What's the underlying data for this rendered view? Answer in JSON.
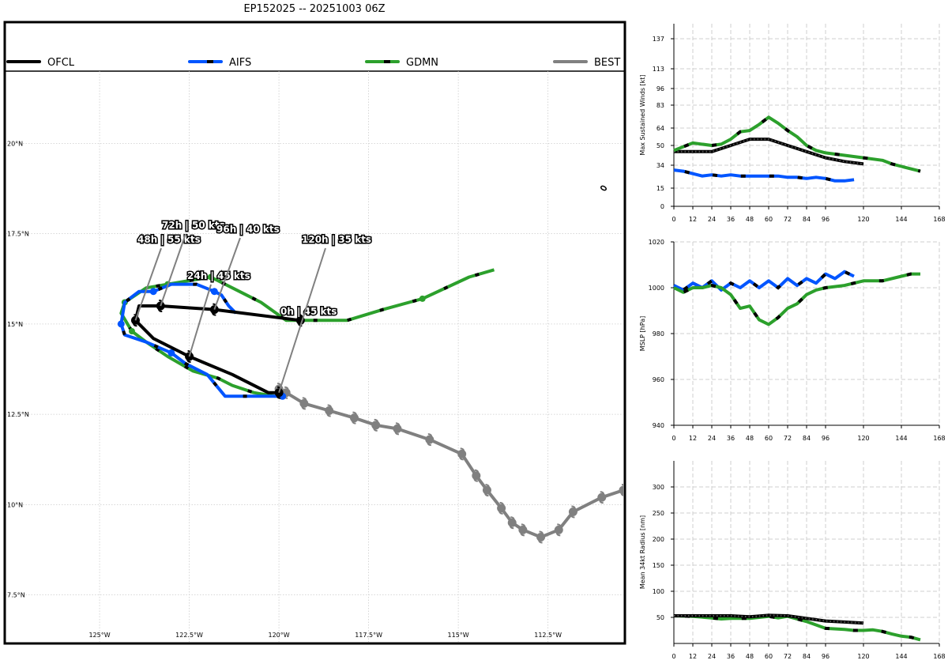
{
  "title": "EP152025 -- 20251003 06Z",
  "chart_data": [
    {
      "type": "line",
      "title": "EP152025 -- 20251003 06Z",
      "subtype": "track-map",
      "xlabel": "",
      "ylabel": "",
      "lon_range": [
        -127.6,
        -110.4
      ],
      "lat_range": [
        6.2,
        22.0
      ],
      "x_ticks": [
        {
          "lon": -125.0,
          "label": "125°W"
        },
        {
          "lon": -122.5,
          "label": "122.5°W"
        },
        {
          "lon": -120.0,
          "label": "120°W"
        },
        {
          "lon": -117.5,
          "label": "117.5°W"
        },
        {
          "lon": -115.0,
          "label": "115°W"
        },
        {
          "lon": -112.5,
          "label": "112.5°W"
        }
      ],
      "y_ticks": [
        {
          "lat": 7.5,
          "label": "7.5°N"
        },
        {
          "lat": 10.0,
          "label": "10°N"
        },
        {
          "lat": 12.5,
          "label": "12.5°N"
        },
        {
          "lat": 15.0,
          "label": "15°N"
        },
        {
          "lat": 17.5,
          "label": "17.5°N"
        },
        {
          "lat": 20.0,
          "label": "20°N"
        }
      ],
      "legend": [
        "OFCL",
        "AIFS",
        "GDMN",
        "BEST"
      ],
      "series": [
        {
          "name": "BEST",
          "color": "#808080",
          "lon": [
            -110.4,
            -111.0,
            -111.8,
            -112.2,
            -112.7,
            -113.2,
            -113.5,
            -113.8,
            -114.2,
            -114.5,
            -114.9,
            -115.8,
            -116.7,
            -117.3,
            -117.9,
            -118.6,
            -119.3,
            -119.8,
            -120.0
          ],
          "lat": [
            10.4,
            10.2,
            9.8,
            9.3,
            9.1,
            9.3,
            9.5,
            9.9,
            10.4,
            10.8,
            11.4,
            11.8,
            12.1,
            12.2,
            12.4,
            12.6,
            12.8,
            13.1,
            13.2
          ]
        },
        {
          "name": "OFCL",
          "color": "#000000",
          "points": [
            {
              "lon": -119.4,
              "lat": 15.1,
              "tau": "0h",
              "wind": 45
            },
            {
              "lon": -122.5,
              "lat": 14.1,
              "tau": "24h",
              "wind": 45
            },
            {
              "lon": -124.0,
              "lat": 15.1,
              "tau": "48h",
              "wind": 55
            },
            {
              "lon": -123.3,
              "lat": 15.5,
              "tau": "72h",
              "wind": 50
            },
            {
              "lon": -121.8,
              "lat": 15.4,
              "tau": "96h",
              "wind": 40
            },
            {
              "lon": -120.0,
              "lat": 13.1,
              "tau": "120h",
              "wind": 35
            }
          ],
          "lon": [
            -119.4,
            -121.8,
            -123.3,
            -123.9,
            -124.0,
            -123.5,
            -122.5,
            -121.3,
            -120.3,
            -120.0
          ],
          "lat": [
            15.1,
            15.4,
            15.5,
            15.5,
            15.1,
            14.6,
            14.1,
            13.6,
            13.1,
            13.1
          ]
        },
        {
          "name": "AIFS",
          "color": "#0055ff",
          "lon": [
            -119.9,
            -120.4,
            -121.5,
            -122.0,
            -122.6,
            -123.0,
            -123.7,
            -124.3,
            -124.4,
            -124.3,
            -123.9,
            -123.5,
            -123.0,
            -122.3,
            -121.8,
            -121.6,
            -121.4,
            -121.2
          ],
          "lat": [
            13.0,
            13.0,
            13.0,
            13.6,
            13.9,
            14.2,
            14.5,
            14.7,
            15.0,
            15.6,
            15.9,
            15.9,
            16.1,
            16.1,
            15.9,
            15.8,
            15.5,
            15.3
          ]
        },
        {
          "name": "GDMN",
          "color": "#2ca02c",
          "lon": [
            -114.0,
            -114.7,
            -116.0,
            -117.1,
            -118.1,
            -118.6,
            -119.4,
            -119.8,
            -120.5,
            -120.9,
            -121.3,
            -121.9,
            -122.5,
            -123.1,
            -123.7,
            -124.3,
            -124.4,
            -124.1,
            -123.7,
            -123.1,
            -122.4,
            -121.7,
            -121.3,
            -120.7,
            -120.1
          ],
          "lat": [
            16.5,
            16.3,
            15.7,
            15.4,
            15.1,
            15.1,
            15.1,
            15.1,
            15.6,
            15.8,
            16.0,
            16.3,
            16.2,
            16.1,
            16.0,
            15.6,
            15.3,
            14.8,
            14.5,
            14.1,
            13.7,
            13.5,
            13.3,
            13.1,
            13.0
          ]
        }
      ],
      "annotations": [
        "0h | 45 kts",
        "24h | 45 kts",
        "48h | 55 kts",
        "72h | 50 kts",
        "96h | 40 kts",
        "120h | 35 kts"
      ]
    },
    {
      "type": "line",
      "title": "",
      "xlabel": "",
      "ylabel": "Max Sustained Winds [kt]",
      "xlim": [
        0,
        168
      ],
      "ylim": [
        0,
        150
      ],
      "x_ticks": [
        0,
        12,
        24,
        36,
        48,
        60,
        72,
        84,
        96,
        120,
        144,
        168
      ],
      "y_ticks": [
        0,
        15,
        34,
        50,
        64,
        83,
        96,
        113,
        137
      ],
      "series": [
        {
          "name": "OFCL",
          "color": "#000000",
          "x": [
            0,
            12,
            24,
            36,
            48,
            60,
            72,
            84,
            96,
            108,
            120
          ],
          "y": [
            45,
            45,
            45,
            50,
            55,
            55,
            50,
            45,
            40,
            37,
            35
          ]
        },
        {
          "name": "AIFS",
          "color": "#0055ff",
          "x": [
            0,
            6,
            12,
            18,
            24,
            30,
            36,
            42,
            48,
            54,
            60,
            66,
            72,
            78,
            84,
            90,
            96,
            102,
            108,
            114
          ],
          "y": [
            30,
            29,
            27,
            25,
            26,
            25,
            26,
            25,
            25,
            25,
            25,
            25,
            24,
            24,
            23,
            24,
            23,
            21,
            21,
            22
          ]
        },
        {
          "name": "GDMN",
          "color": "#2ca02c",
          "x": [
            0,
            12,
            24,
            30,
            36,
            42,
            48,
            54,
            60,
            66,
            72,
            78,
            84,
            90,
            96,
            108,
            120,
            132,
            138,
            144,
            150,
            156
          ],
          "y": [
            46,
            52,
            50,
            51,
            55,
            61,
            62,
            67,
            73,
            68,
            62,
            57,
            50,
            46,
            44,
            42,
            40,
            38,
            35,
            33,
            31,
            29
          ]
        }
      ]
    },
    {
      "type": "line",
      "title": "",
      "xlabel": "",
      "ylabel": "MSLP [hPa]",
      "xlim": [
        0,
        168
      ],
      "ylim": [
        940,
        1020
      ],
      "x_ticks": [
        0,
        12,
        24,
        36,
        48,
        60,
        72,
        84,
        96,
        120,
        144,
        168
      ],
      "y_ticks": [
        940,
        960,
        980,
        1000,
        1020
      ],
      "series": [
        {
          "name": "OFCL",
          "color": "#000000",
          "x": [
            12,
            18,
            24
          ],
          "y": [
            1002,
            1000,
            1003
          ]
        },
        {
          "name": "AIFS",
          "color": "#0055ff",
          "x": [
            0,
            6,
            12,
            18,
            24,
            30,
            36,
            42,
            48,
            54,
            60,
            66,
            72,
            78,
            84,
            90,
            96,
            102,
            108,
            114
          ],
          "y": [
            1001,
            999,
            1002,
            1000,
            1003,
            999,
            1002,
            1000,
            1003,
            1000,
            1003,
            1000,
            1004,
            1001,
            1004,
            1002,
            1006,
            1004,
            1007,
            1005
          ]
        },
        {
          "name": "GDMN",
          "color": "#2ca02c",
          "x": [
            0,
            6,
            12,
            18,
            24,
            30,
            36,
            42,
            48,
            54,
            60,
            66,
            72,
            78,
            84,
            90,
            96,
            108,
            120,
            132,
            144,
            150,
            156
          ],
          "y": [
            1000,
            998,
            1000,
            1000,
            1001,
            1000,
            997,
            991,
            992,
            986,
            984,
            987,
            991,
            993,
            997,
            999,
            1000,
            1001,
            1003,
            1003,
            1005,
            1006,
            1006
          ]
        }
      ]
    },
    {
      "type": "line",
      "title": "",
      "xlabel": "",
      "ylabel": "Mean 34kt Radius [nm]",
      "xlim": [
        0,
        168
      ],
      "ylim": [
        0,
        350
      ],
      "x_ticks": [
        0,
        12,
        24,
        36,
        48,
        60,
        72,
        84,
        96,
        120,
        144,
        168
      ],
      "y_ticks": [
        50,
        100,
        150,
        200,
        250,
        300
      ],
      "series": [
        {
          "name": "GDMN",
          "color": "#2ca02c",
          "x": [
            0,
            12,
            24,
            30,
            36,
            48,
            60,
            66,
            72,
            84,
            96,
            108,
            114,
            120,
            126,
            132,
            138,
            144,
            150,
            156
          ],
          "y": [
            53,
            52,
            49,
            47,
            48,
            48,
            52,
            49,
            52,
            42,
            29,
            27,
            25,
            25,
            26,
            23,
            18,
            14,
            12,
            7
          ]
        },
        {
          "name": "OFCL",
          "color": "#000000",
          "x": [
            0,
            12,
            24,
            36,
            48,
            60,
            72,
            84,
            96,
            108,
            120
          ],
          "y": [
            53,
            53,
            53,
            53,
            51,
            54,
            53,
            48,
            43,
            41,
            39
          ]
        }
      ]
    }
  ]
}
